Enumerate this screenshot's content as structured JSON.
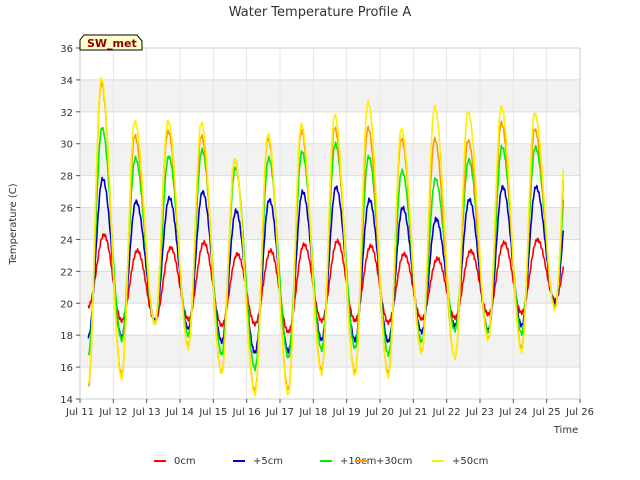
{
  "chart_data": {
    "type": "line",
    "title": "Water Temperature Profile A",
    "xlabel": "Time",
    "ylabel": "Temperature (C)",
    "ylim": [
      14,
      36
    ],
    "yticks": [
      14,
      16,
      18,
      20,
      22,
      24,
      26,
      28,
      30,
      32,
      34,
      36
    ],
    "xlim": [
      "Jul 11",
      "Jul 26"
    ],
    "xticks": [
      "Jul 11",
      "Jul 12",
      "Jul 13",
      "Jul 14",
      "Jul 15",
      "Jul 16",
      "Jul 17",
      "Jul 18",
      "Jul 19",
      "Jul 20",
      "Jul 21",
      "Jul 22",
      "Jul 23",
      "Jul 24",
      "Jul 25",
      "Jul 26"
    ],
    "grid": true,
    "background_bands": true,
    "legend_position": "bottom",
    "site_label": "SW_met",
    "x": [
      "Jul 11",
      "Jul 12",
      "Jul 13",
      "Jul 14",
      "Jul 15",
      "Jul 16",
      "Jul 17",
      "Jul 18",
      "Jul 19",
      "Jul 20",
      "Jul 21",
      "Jul 22",
      "Jul 23",
      "Jul 24",
      "Jul 25"
    ],
    "series": [
      {
        "name": "0cm",
        "color": "#ff0000",
        "start": "Jul 11 06:00",
        "end": "Jul 25 12:00",
        "daily_min": [
          19.8,
          18.9,
          18.9,
          19.0,
          18.6,
          18.7,
          18.2,
          18.9,
          18.9,
          18.8,
          19.0,
          19.1,
          19.3,
          19.4,
          20.2
        ],
        "daily_max": [
          24.3,
          23.3,
          23.5,
          23.8,
          23.1,
          23.3,
          23.7,
          23.9,
          23.6,
          23.1,
          22.8,
          23.3,
          23.8,
          24.0,
          24.0
        ]
      },
      {
        "name": "+5cm",
        "color": "#0000cc",
        "start": "Jul 11 06:00",
        "end": "Jul 25 12:00",
        "daily_min": [
          17.9,
          17.9,
          18.9,
          18.4,
          17.6,
          16.9,
          17.0,
          17.7,
          17.7,
          17.6,
          18.2,
          18.6,
          18.3,
          18.6,
          20.0
        ],
        "daily_max": [
          27.8,
          26.4,
          26.6,
          27.0,
          25.8,
          26.5,
          27.0,
          27.3,
          26.5,
          26.0,
          25.3,
          26.5,
          27.3,
          27.3,
          27.3
        ]
      },
      {
        "name": "+10cm",
        "color": "#00ee00",
        "start": "Jul 11 06:00",
        "end": "Jul 25 12:00",
        "daily_min": [
          16.8,
          17.7,
          18.7,
          18.0,
          16.8,
          15.9,
          16.6,
          17.1,
          17.2,
          16.8,
          17.6,
          18.3,
          18.2,
          18.1,
          19.8
        ],
        "daily_max": [
          31.0,
          29.1,
          29.2,
          29.6,
          28.5,
          29.1,
          29.5,
          30.0,
          29.2,
          28.3,
          27.8,
          29.0,
          29.8,
          29.8,
          29.8
        ]
      },
      {
        "name": "+30cm",
        "color": "#ff9900",
        "start": "Jul 11 06:00",
        "end": "Jul 25 12:00",
        "daily_min": [
          14.8,
          15.5,
          18.8,
          17.3,
          15.7,
          14.5,
          14.6,
          15.8,
          15.7,
          15.6,
          17.0,
          16.6,
          17.8,
          17.2,
          19.7
        ],
        "daily_max": [
          33.8,
          30.5,
          30.8,
          30.5,
          29.0,
          30.3,
          30.8,
          31.0,
          31.0,
          30.3,
          30.3,
          30.2,
          31.3,
          30.9,
          30.9
        ]
      },
      {
        "name": "+50cm",
        "color": "#ffee00",
        "start": "Jul 11 06:00",
        "end": "Jul 25 12:00",
        "daily_min": [
          15.0,
          15.3,
          18.7,
          17.2,
          15.6,
          14.3,
          14.3,
          15.6,
          15.5,
          15.4,
          16.9,
          16.6,
          17.7,
          17.0,
          19.6
        ],
        "daily_max": [
          34.1,
          31.4,
          31.4,
          31.3,
          29.0,
          30.6,
          31.2,
          31.8,
          32.6,
          30.9,
          32.3,
          32.0,
          32.3,
          31.9,
          31.9
        ]
      }
    ]
  }
}
